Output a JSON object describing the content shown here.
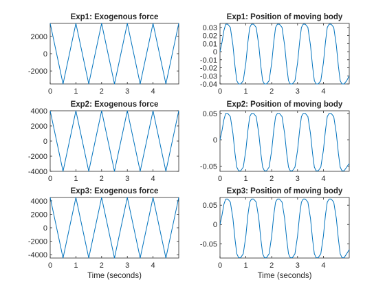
{
  "figure": {
    "background": "#ffffff",
    "line_color": "#0072bd"
  },
  "chart_data": [
    {
      "type": "line",
      "title": "Exp1: Exogenous force",
      "xlabel": "",
      "ylabel": "",
      "xlim": [
        0,
        5
      ],
      "ylim": [
        -3500,
        3500
      ],
      "xticks": [
        0,
        1,
        2,
        3,
        4
      ],
      "xtick_labels": [
        "0",
        "1",
        "2",
        "3",
        "4"
      ],
      "yticks": [
        -2000,
        0,
        2000
      ],
      "ytick_labels": [
        "-2000",
        "0",
        "2000"
      ],
      "series": [
        {
          "x": [
            0,
            0.5,
            1.0,
            1.5,
            2.0,
            2.5,
            3.0,
            3.5,
            4.0,
            4.5,
            5.0
          ],
          "values": [
            3500,
            -3500,
            3500,
            -3500,
            3500,
            -3500,
            3500,
            -3500,
            3500,
            -3500,
            3500
          ]
        }
      ]
    },
    {
      "type": "line",
      "title": "Exp1: Position of moving body",
      "xlabel": "",
      "ylabel": "",
      "xlim": [
        0,
        5
      ],
      "ylim": [
        -0.04,
        0.035
      ],
      "xticks": [
        0,
        1,
        2,
        3,
        4
      ],
      "xtick_labels": [
        "0",
        "1",
        "2",
        "3",
        "4"
      ],
      "yticks": [
        -0.04,
        -0.03,
        -0.02,
        -0.01,
        0,
        0.01,
        0.02,
        0.03
      ],
      "ytick_labels": [
        "-0.04",
        "-0.03",
        "-0.02",
        "-0.01",
        "0",
        "0.01",
        "0.02",
        "0.03"
      ],
      "series": [
        {
          "x": [
            0,
            0.08,
            0.15,
            0.22,
            0.3,
            0.4,
            0.5,
            0.58,
            0.65,
            0.72,
            0.8,
            0.9,
            1.0,
            1.08,
            1.15,
            1.22,
            1.3,
            1.4,
            1.5,
            1.58,
            1.65,
            1.72,
            1.8,
            1.9,
            2.0,
            2.08,
            2.15,
            2.22,
            2.3,
            2.4,
            2.5,
            2.58,
            2.65,
            2.72,
            2.8,
            2.9,
            3.0,
            3.08,
            3.15,
            3.22,
            3.3,
            3.4,
            3.5,
            3.58,
            3.65,
            3.72,
            3.8,
            3.9,
            4.0,
            4.08,
            4.15,
            4.22,
            4.3,
            4.4,
            4.5,
            4.58,
            4.65,
            4.72,
            4.8,
            4.9,
            5.0
          ],
          "values": [
            0,
            0.012,
            0.026,
            0.034,
            0.034,
            0.03,
            0.008,
            -0.018,
            -0.036,
            -0.04,
            -0.04,
            -0.036,
            -0.014,
            0.012,
            0.03,
            0.034,
            0.034,
            0.03,
            0.008,
            -0.018,
            -0.036,
            -0.04,
            -0.04,
            -0.036,
            -0.014,
            0.012,
            0.03,
            0.034,
            0.034,
            0.03,
            0.008,
            -0.018,
            -0.036,
            -0.04,
            -0.04,
            -0.036,
            -0.014,
            0.012,
            0.03,
            0.034,
            0.034,
            0.03,
            0.008,
            -0.018,
            -0.036,
            -0.04,
            -0.04,
            -0.036,
            -0.014,
            0.012,
            0.03,
            0.034,
            0.034,
            0.03,
            0.008,
            -0.018,
            -0.036,
            -0.04,
            -0.04,
            -0.036,
            -0.03
          ]
        }
      ]
    },
    {
      "type": "line",
      "title": "Exp2: Exogenous force",
      "xlabel": "",
      "ylabel": "",
      "xlim": [
        0,
        5
      ],
      "ylim": [
        -4000,
        4000
      ],
      "xticks": [
        0,
        1,
        2,
        3,
        4
      ],
      "xtick_labels": [
        "0",
        "1",
        "2",
        "3",
        "4"
      ],
      "yticks": [
        -4000,
        -2000,
        0,
        2000,
        4000
      ],
      "ytick_labels": [
        "-4000",
        "-2000",
        "0",
        "2000",
        "4000"
      ],
      "series": [
        {
          "x": [
            0,
            0.5,
            1.0,
            1.5,
            2.0,
            2.5,
            3.0,
            3.5,
            4.0,
            4.5,
            5.0
          ],
          "values": [
            4000,
            -4000,
            4000,
            -4000,
            4000,
            -4000,
            4000,
            -4000,
            4000,
            -4000,
            4000
          ]
        }
      ]
    },
    {
      "type": "line",
      "title": "Exp2: Position of moving body",
      "xlabel": "",
      "ylabel": "",
      "xlim": [
        0,
        5
      ],
      "ylim": [
        -0.06,
        0.055
      ],
      "xticks": [
        0,
        1,
        2,
        3,
        4
      ],
      "xtick_labels": [
        "0",
        "1",
        "2",
        "3",
        "4"
      ],
      "yticks": [
        -0.05,
        0,
        0.05
      ],
      "ytick_labels": [
        "-0.05",
        "0",
        "0.05"
      ],
      "series": [
        {
          "x": [
            0,
            0.08,
            0.15,
            0.22,
            0.3,
            0.4,
            0.5,
            0.58,
            0.65,
            0.72,
            0.8,
            0.9,
            1.0,
            1.08,
            1.15,
            1.22,
            1.3,
            1.4,
            1.5,
            1.58,
            1.65,
            1.72,
            1.8,
            1.9,
            2.0,
            2.08,
            2.15,
            2.22,
            2.3,
            2.4,
            2.5,
            2.58,
            2.65,
            2.72,
            2.8,
            2.9,
            3.0,
            3.08,
            3.15,
            3.22,
            3.3,
            3.4,
            3.5,
            3.58,
            3.65,
            3.72,
            3.8,
            3.9,
            4.0,
            4.08,
            4.15,
            4.22,
            4.3,
            4.4,
            4.5,
            4.58,
            4.65,
            4.72,
            4.8,
            4.9,
            5.0
          ],
          "values": [
            0,
            0.018,
            0.038,
            0.05,
            0.05,
            0.044,
            0.012,
            -0.026,
            -0.052,
            -0.059,
            -0.059,
            -0.052,
            -0.02,
            0.018,
            0.044,
            0.05,
            0.05,
            0.044,
            0.012,
            -0.026,
            -0.052,
            -0.059,
            -0.059,
            -0.052,
            -0.02,
            0.018,
            0.044,
            0.05,
            0.05,
            0.044,
            0.012,
            -0.026,
            -0.052,
            -0.059,
            -0.059,
            -0.052,
            -0.02,
            0.018,
            0.044,
            0.05,
            0.05,
            0.044,
            0.012,
            -0.026,
            -0.052,
            -0.059,
            -0.059,
            -0.052,
            -0.02,
            0.018,
            0.044,
            0.05,
            0.05,
            0.044,
            0.012,
            -0.026,
            -0.052,
            -0.059,
            -0.059,
            -0.052,
            -0.045
          ]
        }
      ]
    },
    {
      "type": "line",
      "title": "Exp3: Exogenous force",
      "xlabel": "Time (seconds)",
      "ylabel": "",
      "xlim": [
        0,
        5
      ],
      "ylim": [
        -4500,
        4500
      ],
      "xticks": [
        0,
        1,
        2,
        3,
        4
      ],
      "xtick_labels": [
        "0",
        "1",
        "2",
        "3",
        "4"
      ],
      "yticks": [
        -4000,
        -2000,
        0,
        2000,
        4000
      ],
      "ytick_labels": [
        "-4000",
        "-2000",
        "0",
        "2000",
        "4000"
      ],
      "series": [
        {
          "x": [
            0,
            0.5,
            1.0,
            1.5,
            2.0,
            2.5,
            3.0,
            3.5,
            4.0,
            4.5,
            5.0
          ],
          "values": [
            4500,
            -4500,
            4500,
            -4500,
            4500,
            -4500,
            4500,
            -4500,
            4500,
            -4500,
            4500
          ]
        }
      ]
    },
    {
      "type": "line",
      "title": "Exp3: Position of moving body",
      "xlabel": "Time (seconds)",
      "ylabel": "",
      "xlim": [
        0,
        5
      ],
      "ylim": [
        -0.087,
        0.07
      ],
      "xticks": [
        0,
        1,
        2,
        3,
        4
      ],
      "xtick_labels": [
        "0",
        "1",
        "2",
        "3",
        "4"
      ],
      "yticks": [
        -0.05,
        0,
        0.05
      ],
      "ytick_labels": [
        "-0.05",
        "0",
        "0.05"
      ],
      "series": [
        {
          "x": [
            0,
            0.08,
            0.15,
            0.22,
            0.3,
            0.4,
            0.5,
            0.58,
            0.65,
            0.72,
            0.8,
            0.9,
            1.0,
            1.08,
            1.15,
            1.22,
            1.3,
            1.4,
            1.5,
            1.58,
            1.65,
            1.72,
            1.8,
            1.9,
            2.0,
            2.08,
            2.15,
            2.22,
            2.3,
            2.4,
            2.5,
            2.58,
            2.65,
            2.72,
            2.8,
            2.9,
            3.0,
            3.08,
            3.15,
            3.22,
            3.3,
            3.4,
            3.5,
            3.58,
            3.65,
            3.72,
            3.8,
            3.9,
            4.0,
            4.08,
            4.15,
            4.22,
            4.3,
            4.4,
            4.5,
            4.58,
            4.65,
            4.72,
            4.8,
            4.9,
            5.0
          ],
          "values": [
            0,
            0.025,
            0.052,
            0.066,
            0.066,
            0.058,
            0.016,
            -0.038,
            -0.076,
            -0.086,
            -0.086,
            -0.076,
            -0.03,
            0.025,
            0.058,
            0.066,
            0.066,
            0.058,
            0.016,
            -0.038,
            -0.076,
            -0.086,
            -0.086,
            -0.076,
            -0.03,
            0.025,
            0.058,
            0.066,
            0.066,
            0.058,
            0.016,
            -0.038,
            -0.076,
            -0.086,
            -0.086,
            -0.076,
            -0.03,
            0.025,
            0.058,
            0.066,
            0.066,
            0.058,
            0.016,
            -0.038,
            -0.076,
            -0.086,
            -0.086,
            -0.076,
            -0.03,
            0.025,
            0.058,
            0.066,
            0.066,
            0.058,
            0.016,
            -0.038,
            -0.076,
            -0.086,
            -0.086,
            -0.076,
            -0.065
          ]
        }
      ]
    }
  ]
}
